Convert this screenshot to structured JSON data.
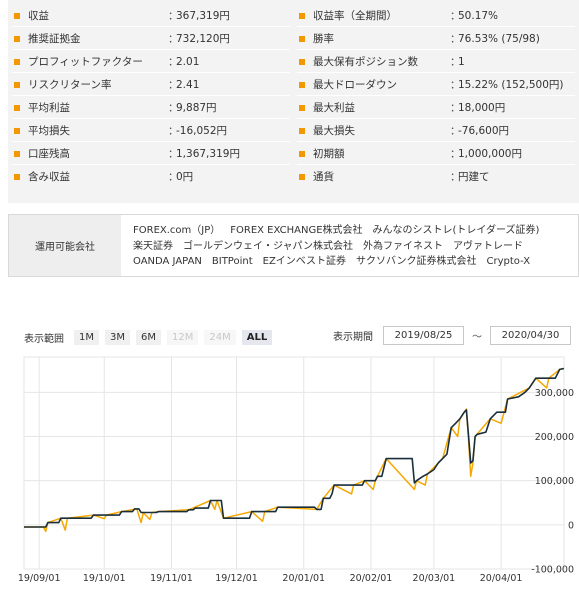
{
  "stats": {
    "left": [
      {
        "label": "収益",
        "value": "367,319円"
      },
      {
        "label": "推奨証拠金",
        "value": "732,120円"
      },
      {
        "label": "プロフィットファクター",
        "value": "2.01"
      },
      {
        "label": "リスクリターン率",
        "value": "2.41"
      },
      {
        "label": "平均利益",
        "value": "9,887円"
      },
      {
        "label": "平均損失",
        "value": "-16,052円"
      },
      {
        "label": "口座残高",
        "value": "1,367,319円"
      },
      {
        "label": "含み収益",
        "value": "0円"
      }
    ],
    "right": [
      {
        "label": "収益率（全期間）",
        "value": "50.17%"
      },
      {
        "label": "勝率",
        "value": "76.53% (75/98)"
      },
      {
        "label": "最大保有ポジション数",
        "value": "1"
      },
      {
        "label": "最大ドローダウン",
        "value": "15.22% (152,500円)"
      },
      {
        "label": "最大利益",
        "value": "18,000円"
      },
      {
        "label": "最大損失",
        "value": "-76,600円"
      },
      {
        "label": "初期額",
        "value": "1,000,000円"
      },
      {
        "label": "通貨",
        "value": "円建て"
      }
    ],
    "colon": "：",
    "bullet_color": "#f39800"
  },
  "companies": {
    "heading": "運用可能会社",
    "items": [
      "FOREX.com（JP）",
      "FOREX EXCHANGE株式会社",
      "みんなのシストレ(トレイダーズ証券)",
      "楽天証券",
      "ゴールデンウェイ・ジャパン株式会社",
      "外為ファイネスト",
      "アヴァトレード",
      "OANDA JAPAN",
      "BITPoint",
      "EZインベスト証券",
      "サクソバンク証券株式会社",
      "Crypto-X"
    ]
  },
  "range": {
    "title": "表示範囲",
    "buttons": [
      {
        "label": "1M",
        "state": "normal"
      },
      {
        "label": "3M",
        "state": "normal"
      },
      {
        "label": "6M",
        "state": "normal"
      },
      {
        "label": "12M",
        "state": "disabled"
      },
      {
        "label": "24M",
        "state": "disabled"
      },
      {
        "label": "ALL",
        "state": "active"
      }
    ]
  },
  "period": {
    "title": "表示期間",
    "start": "2019/08/25",
    "separator": "〜",
    "end": "2020/04/30"
  },
  "chart_data": {
    "type": "line",
    "xlim": [
      "2019-08-25",
      "2020-04-30"
    ],
    "ylim": [
      -100000,
      380000
    ],
    "x_ticks": [
      "19/09/01",
      "19/10/01",
      "19/11/01",
      "19/12/01",
      "20/01/01",
      "20/02/01",
      "20/03/01",
      "20/04/01"
    ],
    "y_ticks": [
      "-100,000",
      "0",
      "100,000",
      "200,000",
      "300,000"
    ],
    "y_tick_values": [
      -100000,
      0,
      100000,
      200000,
      300000
    ],
    "grid": true,
    "colors": {
      "realized": "#1a2e3b",
      "floating": "#f5a800",
      "grid": "#e6e6e6"
    },
    "series": [
      {
        "role": "realized",
        "points": [
          [
            "2019-08-25",
            -5000
          ],
          [
            "2019-09-04",
            -5000
          ],
          [
            "2019-09-05",
            5000
          ],
          [
            "2019-09-10",
            5000
          ],
          [
            "2019-09-11",
            15000
          ],
          [
            "2019-09-25",
            15000
          ],
          [
            "2019-09-26",
            22000
          ],
          [
            "2019-10-08",
            22000
          ],
          [
            "2019-10-09",
            30000
          ],
          [
            "2019-10-14",
            30000
          ],
          [
            "2019-10-15",
            36000
          ],
          [
            "2019-10-17",
            36000
          ],
          [
            "2019-10-18",
            28000
          ],
          [
            "2019-10-25",
            28000
          ],
          [
            "2019-10-26",
            30000
          ],
          [
            "2019-11-08",
            30000
          ],
          [
            "2019-11-09",
            34000
          ],
          [
            "2019-11-11",
            34000
          ],
          [
            "2019-11-12",
            38000
          ],
          [
            "2019-11-18",
            38000
          ],
          [
            "2019-11-19",
            55000
          ],
          [
            "2019-11-24",
            55000
          ],
          [
            "2019-11-25",
            15000
          ],
          [
            "2019-12-07",
            15000
          ],
          [
            "2019-12-08",
            30000
          ],
          [
            "2019-12-19",
            30000
          ],
          [
            "2019-12-20",
            40000
          ],
          [
            "2020-01-06",
            40000
          ],
          [
            "2020-01-07",
            35000
          ],
          [
            "2020-01-09",
            35000
          ],
          [
            "2020-01-10",
            60000
          ],
          [
            "2020-01-13",
            60000
          ],
          [
            "2020-01-14",
            70000
          ],
          [
            "2020-01-15",
            90000
          ],
          [
            "2020-01-28",
            90000
          ],
          [
            "2020-01-29",
            100000
          ],
          [
            "2020-02-03",
            100000
          ],
          [
            "2020-02-04",
            110000
          ],
          [
            "2020-02-06",
            110000
          ],
          [
            "2020-02-07",
            130000
          ],
          [
            "2020-02-08",
            150000
          ],
          [
            "2020-02-20",
            150000
          ],
          [
            "2020-02-21",
            95000
          ],
          [
            "2020-02-22",
            100000
          ],
          [
            "2020-02-25",
            110000
          ],
          [
            "2020-02-27",
            115000
          ],
          [
            "2020-03-01",
            125000
          ],
          [
            "2020-03-03",
            140000
          ],
          [
            "2020-03-05",
            150000
          ],
          [
            "2020-03-07",
            160000
          ],
          [
            "2020-03-09",
            220000
          ],
          [
            "2020-03-11",
            230000
          ],
          [
            "2020-03-13",
            240000
          ],
          [
            "2020-03-15",
            255000
          ],
          [
            "2020-03-16",
            260000
          ],
          [
            "2020-03-17",
            200000
          ],
          [
            "2020-03-18",
            140000
          ],
          [
            "2020-03-19",
            145000
          ],
          [
            "2020-03-20",
            200000
          ],
          [
            "2020-03-21",
            205000
          ],
          [
            "2020-03-25",
            210000
          ],
          [
            "2020-03-27",
            240000
          ],
          [
            "2020-03-30",
            255000
          ],
          [
            "2020-04-03",
            255000
          ],
          [
            "2020-04-04",
            285000
          ],
          [
            "2020-04-09",
            290000
          ],
          [
            "2020-04-12",
            300000
          ],
          [
            "2020-04-14",
            310000
          ],
          [
            "2020-04-17",
            332000
          ],
          [
            "2020-04-26",
            332000
          ],
          [
            "2020-04-28",
            352000
          ],
          [
            "2020-04-30",
            354000
          ]
        ]
      },
      {
        "role": "floating",
        "points": [
          [
            "2019-08-25",
            -5000
          ],
          [
            "2019-09-03",
            -5000
          ],
          [
            "2019-09-04",
            -15000
          ],
          [
            "2019-09-05",
            5000
          ],
          [
            "2019-09-11",
            15000
          ],
          [
            "2019-09-13",
            -12000
          ],
          [
            "2019-09-14",
            15000
          ],
          [
            "2019-09-26",
            22000
          ],
          [
            "2019-10-01",
            14000
          ],
          [
            "2019-10-02",
            22000
          ],
          [
            "2019-10-09",
            30000
          ],
          [
            "2019-10-16",
            36000
          ],
          [
            "2019-10-18",
            5000
          ],
          [
            "2019-10-19",
            28000
          ],
          [
            "2019-10-22",
            12000
          ],
          [
            "2019-10-23",
            28000
          ],
          [
            "2019-10-26",
            30000
          ],
          [
            "2019-11-09",
            34000
          ],
          [
            "2019-11-19",
            55000
          ],
          [
            "2019-11-21",
            35000
          ],
          [
            "2019-11-22",
            55000
          ],
          [
            "2019-11-25",
            15000
          ],
          [
            "2019-12-08",
            30000
          ],
          [
            "2019-12-13",
            8000
          ],
          [
            "2019-12-14",
            30000
          ],
          [
            "2019-12-20",
            40000
          ],
          [
            "2020-01-07",
            35000
          ],
          [
            "2020-01-10",
            60000
          ],
          [
            "2020-01-15",
            90000
          ],
          [
            "2020-01-23",
            70000
          ],
          [
            "2020-01-24",
            90000
          ],
          [
            "2020-01-29",
            100000
          ],
          [
            "2020-02-02",
            80000
          ],
          [
            "2020-02-03",
            100000
          ],
          [
            "2020-02-08",
            150000
          ],
          [
            "2020-02-21",
            80000
          ],
          [
            "2020-02-22",
            100000
          ],
          [
            "2020-02-26",
            90000
          ],
          [
            "2020-02-27",
            115000
          ],
          [
            "2020-03-05",
            150000
          ],
          [
            "2020-03-09",
            220000
          ],
          [
            "2020-03-12",
            200000
          ],
          [
            "2020-03-13",
            240000
          ],
          [
            "2020-03-16",
            262000
          ],
          [
            "2020-03-17",
            190000
          ],
          [
            "2020-03-18",
            110000
          ],
          [
            "2020-03-19",
            140000
          ],
          [
            "2020-03-20",
            200000
          ],
          [
            "2020-03-27",
            240000
          ],
          [
            "2020-04-01",
            230000
          ],
          [
            "2020-04-04",
            285000
          ],
          [
            "2020-04-14",
            310000
          ],
          [
            "2020-04-17",
            332000
          ],
          [
            "2020-04-22",
            310000
          ],
          [
            "2020-04-23",
            332000
          ],
          [
            "2020-04-28",
            352000
          ],
          [
            "2020-04-30",
            354000
          ]
        ]
      }
    ]
  }
}
